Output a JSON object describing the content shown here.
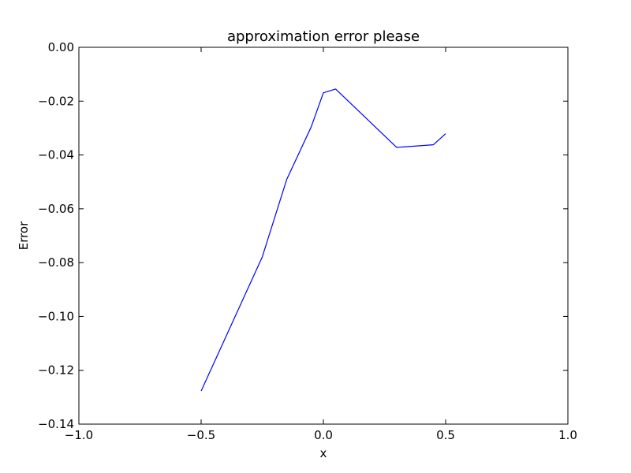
{
  "chart_data": {
    "type": "line",
    "title": "approximation error please",
    "xlabel": "x",
    "ylabel": "Error",
    "xlim": [
      -1.0,
      1.0
    ],
    "ylim": [
      -0.14,
      0.0
    ],
    "x_ticks": [
      -1.0,
      -0.5,
      0.0,
      0.5,
      1.0
    ],
    "x_tick_labels": [
      "−1.0",
      "−0.5",
      "0.0",
      "0.5",
      "1.0"
    ],
    "y_ticks": [
      0.0,
      -0.02,
      -0.04,
      -0.06,
      -0.08,
      -0.1,
      -0.12,
      -0.14
    ],
    "y_tick_labels": [
      "0.00",
      "−0.02",
      "−0.04",
      "−0.06",
      "−0.08",
      "−0.10",
      "−0.12",
      "−0.14"
    ],
    "grid": false,
    "series": [
      {
        "color": "#0000ff",
        "x": [
          -0.5,
          -0.25,
          -0.15,
          -0.05,
          0.0,
          0.05,
          0.3,
          0.45,
          0.5
        ],
        "y": [
          -0.1277,
          -0.0779,
          -0.0491,
          -0.0296,
          -0.0169,
          -0.0155,
          -0.0372,
          -0.0362,
          -0.0321
        ]
      }
    ]
  }
}
